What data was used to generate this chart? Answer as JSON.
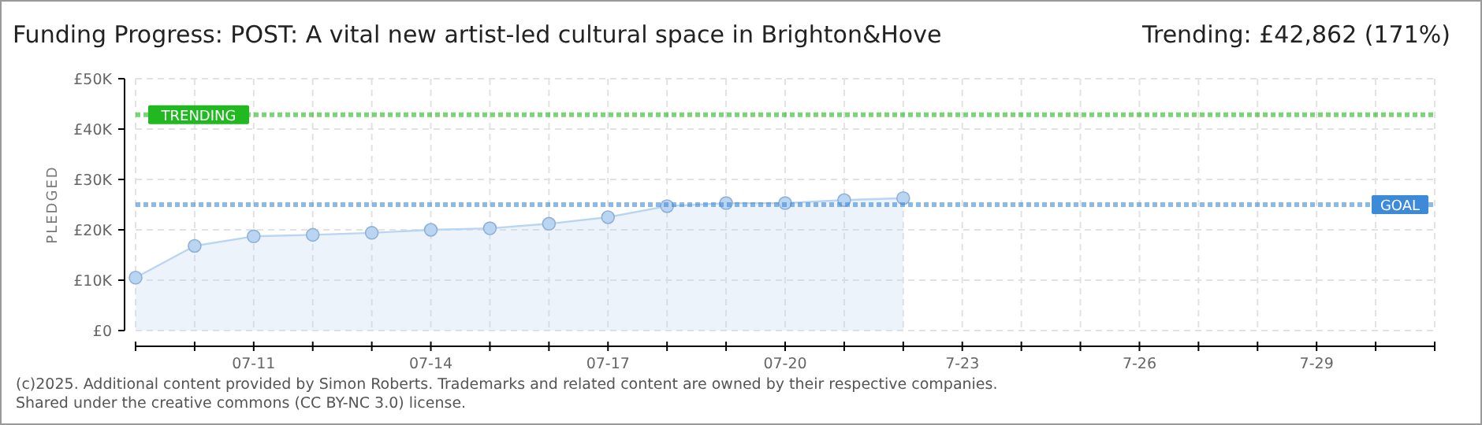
{
  "chart_data": {
    "type": "area",
    "title": "Funding Progress: POST: A vital new artist-led cultural space in Brighton&Hove",
    "subtitle": "Trending:  £42,862 (171%)",
    "ylabel": "PLEDGED",
    "x": [
      "--07-09",
      "--07-10",
      "--07-11",
      "--07-12",
      "--07-13",
      "--07-14",
      "--07-15",
      "--07-16",
      "--07-17",
      "--07-18",
      "--07-19",
      "--07-20",
      "--07-21",
      "--07-22"
    ],
    "series": [
      {
        "color": "#b9d5f2",
        "values": [
          10500,
          16800,
          18700,
          19000,
          19400,
          20000,
          20300,
          21200,
          22500,
          24700,
          25300,
          25300,
          25900,
          26300
        ]
      }
    ],
    "xlim": [
      "--07-09",
      "--07-31"
    ],
    "xticks": [
      {
        "value": "--07-09",
        "label": null
      },
      {
        "value": "--07-10",
        "label": null
      },
      {
        "value": "--07-11",
        "label": "07-11"
      },
      {
        "value": "--07-12",
        "label": null
      },
      {
        "value": "--07-13",
        "label": null
      },
      {
        "value": "--07-14",
        "label": "07-14"
      },
      {
        "value": "--07-15",
        "label": null
      },
      {
        "value": "--07-16",
        "label": null
      },
      {
        "value": "--07-17",
        "label": "07-17"
      },
      {
        "value": "--07-18",
        "label": null
      },
      {
        "value": "--07-19",
        "label": null
      },
      {
        "value": "--07-20",
        "label": "07-20"
      },
      {
        "value": "--07-21",
        "label": null
      },
      {
        "value": "--07-22",
        "label": null
      },
      {
        "value": "--07-23",
        "label": "7-23"
      },
      {
        "value": "--07-24",
        "label": null
      },
      {
        "value": "--07-25",
        "label": null
      },
      {
        "value": "--07-26",
        "label": "7-26"
      },
      {
        "value": "--07-27",
        "label": null
      },
      {
        "value": "--07-28",
        "label": null
      },
      {
        "value": "--07-29",
        "label": "7-29"
      },
      {
        "value": "--07-30",
        "label": null
      },
      {
        "value": "--07-31",
        "label": null
      }
    ],
    "ylim": [
      0,
      50000
    ],
    "yticks": [
      {
        "value": 0,
        "label": "£0"
      },
      {
        "value": 10000,
        "label": "£10K"
      },
      {
        "value": 20000,
        "label": "£20K"
      },
      {
        "value": 30000,
        "label": "£30K"
      },
      {
        "value": 40000,
        "label": "£40K"
      },
      {
        "value": 50000,
        "label": "£50K"
      }
    ],
    "ref_lines": [
      {
        "axis": "y",
        "value": 42862,
        "label": "TRENDING",
        "color": "#22b822",
        "line_style": "dotted"
      },
      {
        "axis": "y",
        "value": 25000,
        "label": "GOAL",
        "color": "#3d8ad8",
        "line_style": "dotted"
      }
    ],
    "annotations": [
      "(c)2025. Additional content provided by Simon Roberts. Trademarks and related content are owned by their respective companies.",
      "Shared under the creative commons (CC BY-NC 3.0) license."
    ],
    "grid": true,
    "marker": "circle"
  }
}
